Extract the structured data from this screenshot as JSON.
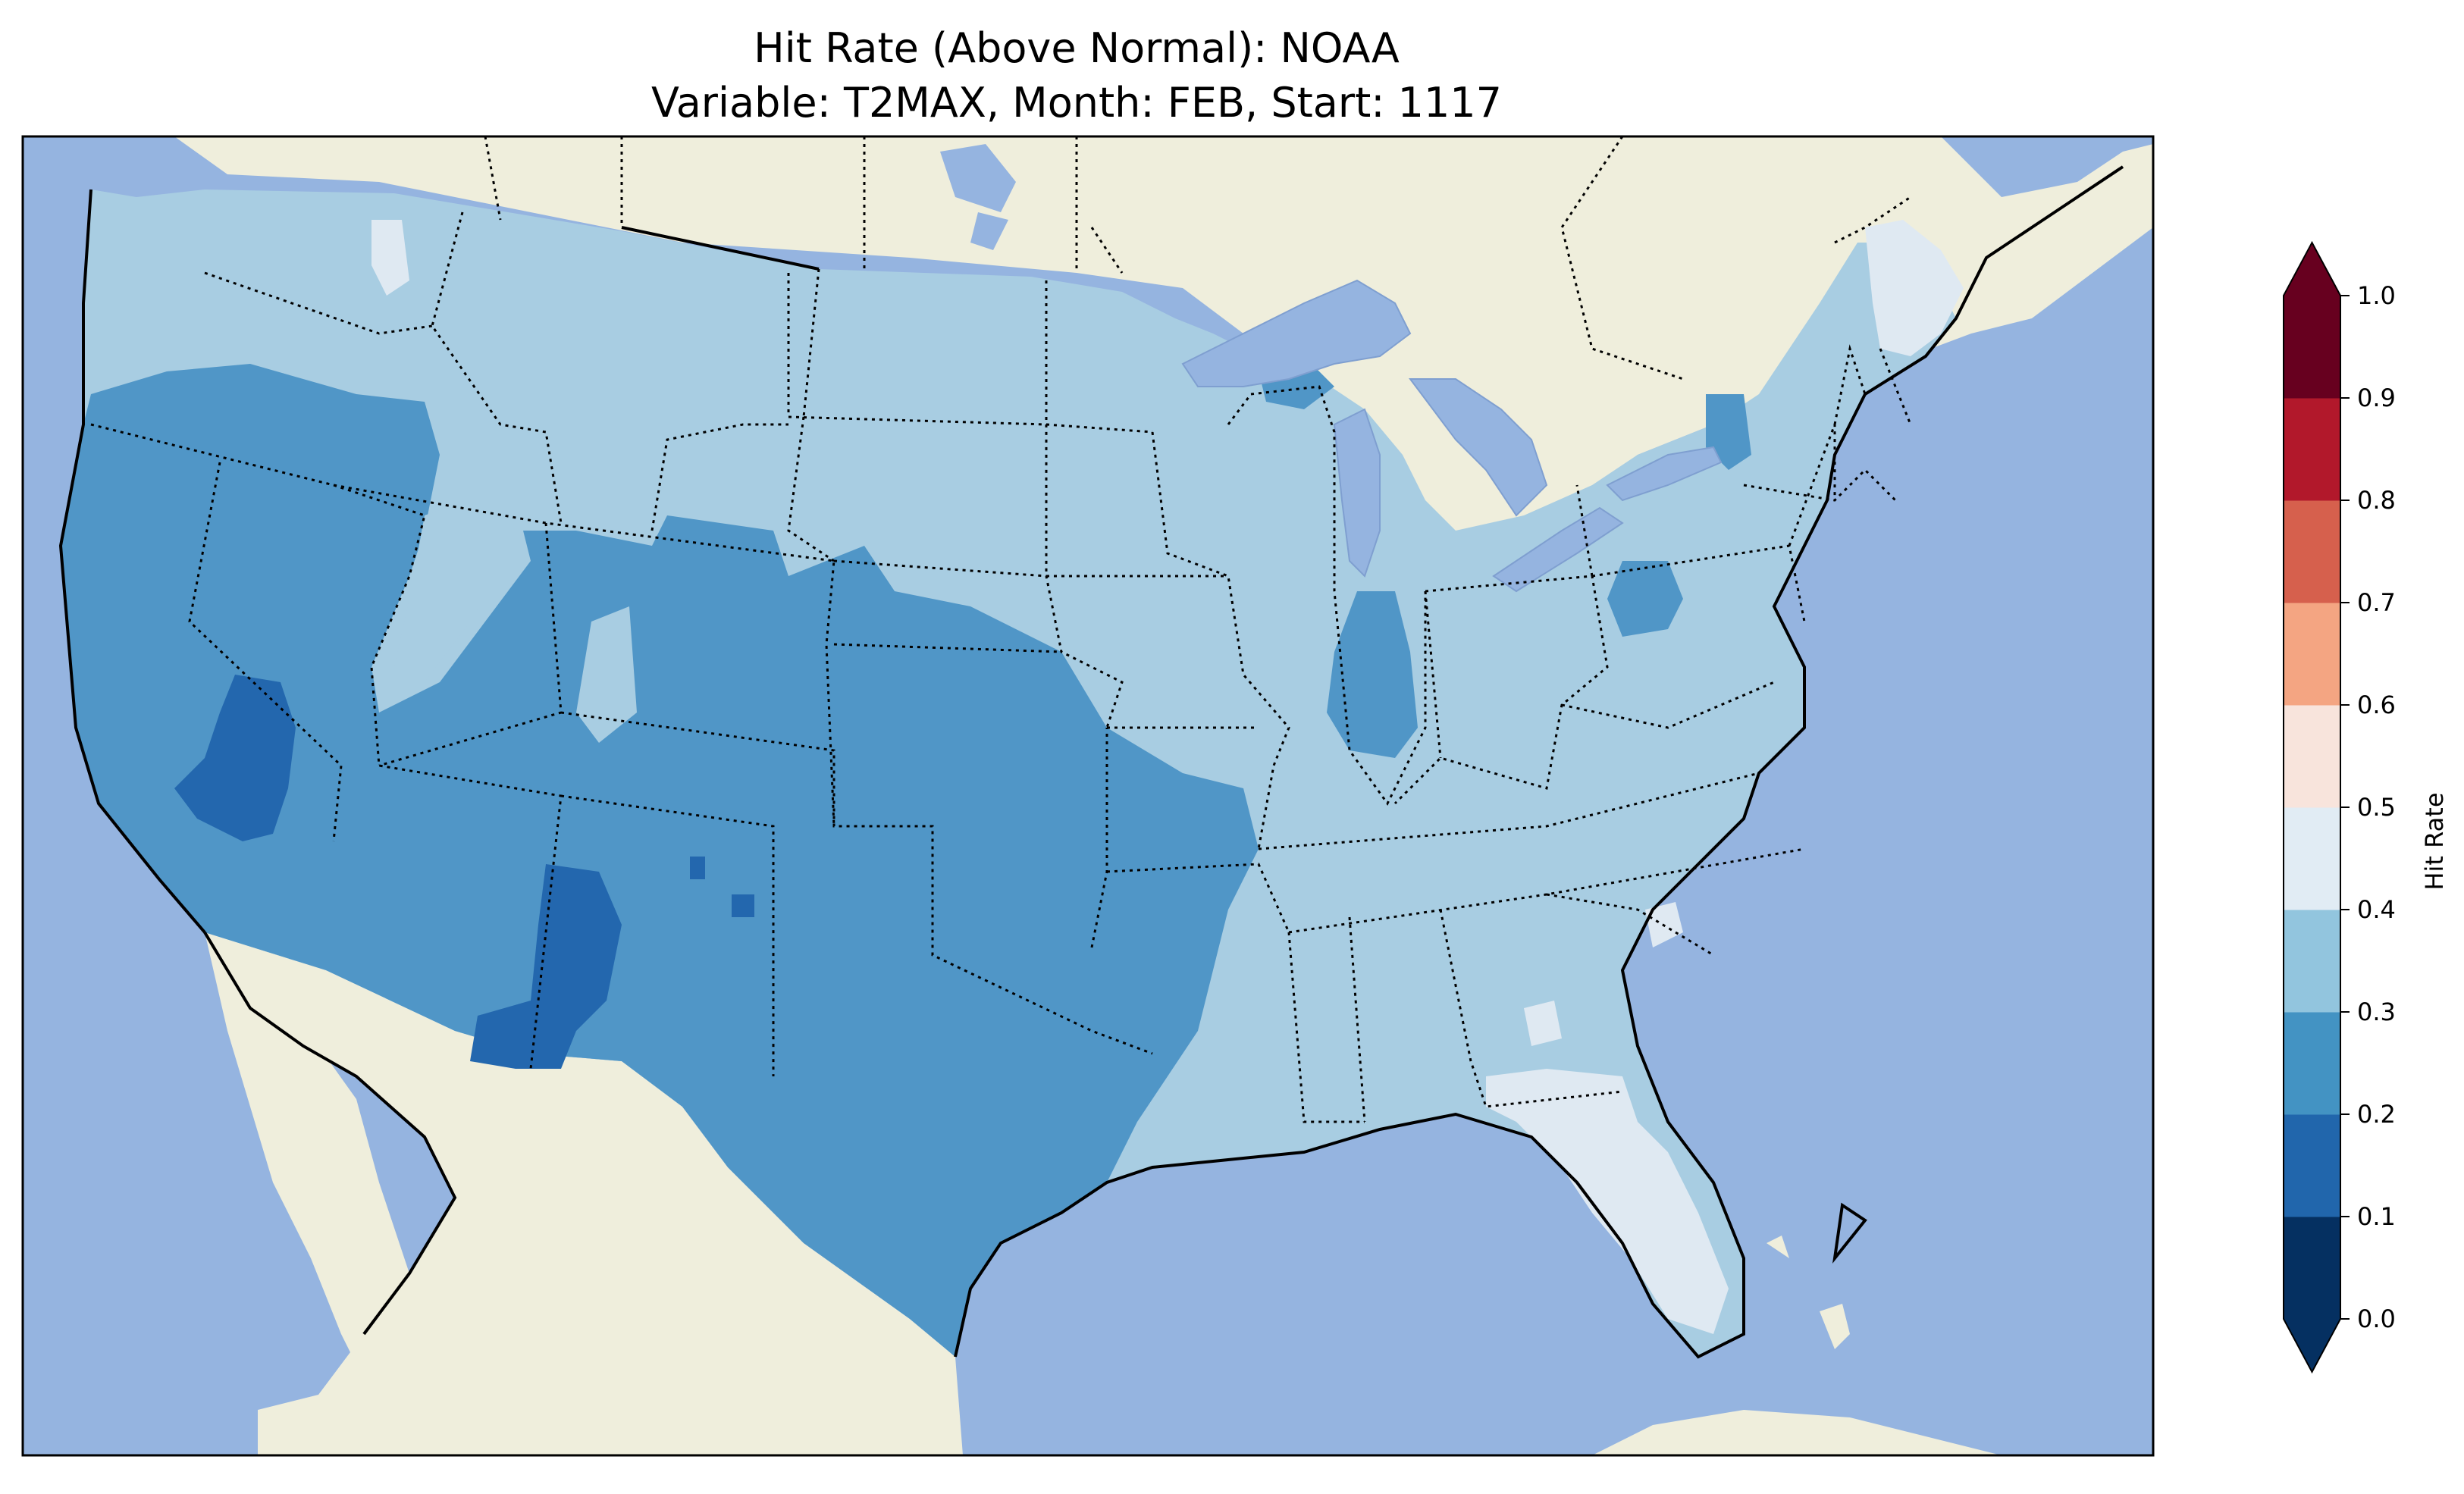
{
  "title": {
    "line1": "Hit Rate (Above Normal): NOAA",
    "line2": "Variable: T2MAX, Month: FEB, Start: 1117"
  },
  "colors": {
    "ocean": "#95b4e0",
    "land": "#efeedc",
    "lakes": "#95b4e0"
  },
  "colorbar": {
    "label": "Hit Rate",
    "ticks": [
      "0.0",
      "0.1",
      "0.2",
      "0.3",
      "0.4",
      "0.5",
      "0.6",
      "0.7",
      "0.8",
      "0.9",
      "1.0"
    ],
    "colors": [
      "#053061",
      "#2166ac",
      "#4393c3",
      "#92c5de",
      "#d1e5f0",
      "#f7f7f7",
      "#fddbc7",
      "#f4a582",
      "#d6604d",
      "#b2182b",
      "#67001f"
    ],
    "under_color": "#053061",
    "over_color": "#67001f"
  },
  "chart_data": {
    "type": "heatmap",
    "title": "Hit Rate (Above Normal): NOAA",
    "subtitle": "Variable: T2MAX, Month: FEB, Start: 1117",
    "colorbar_label": "Hit Rate",
    "range": [
      0.0,
      1.0
    ],
    "levels": [
      0.0,
      0.1,
      0.2,
      0.3,
      0.4,
      0.5,
      0.6,
      0.7,
      0.8,
      0.9,
      1.0
    ],
    "regions": [
      {
        "region": "Pacific Northwest / northern Rockies / northern Plains / Midwest / Northeast",
        "hit_rate_range": [
          0.3,
          0.4
        ]
      },
      {
        "region": "Northern California / Oregon / Nevada / Utah / Colorado / Arizona / New Mexico / Texas / Oklahoma / Arkansas",
        "hit_rate_range": [
          0.2,
          0.3
        ]
      },
      {
        "region": "Central California / southern Nevada / western New Mexico",
        "hit_rate_range": [
          0.1,
          0.2
        ]
      },
      {
        "region": "Florida / southeast Georgia / northern Maine",
        "hit_rate_range": [
          0.4,
          0.5
        ]
      },
      {
        "region": "Southeast / Gulf Coast / Mid-Atlantic",
        "hit_rate_range": [
          0.3,
          0.4
        ]
      }
    ]
  }
}
